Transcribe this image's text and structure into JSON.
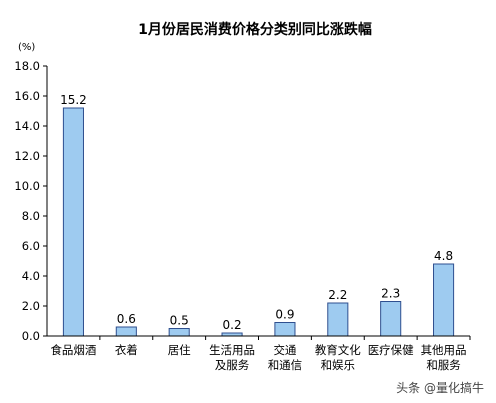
{
  "chart_data": {
    "type": "bar",
    "title": "1月份居民消费价格分类别同比涨跌幅",
    "unit_label": "(%)",
    "ylim": [
      0,
      18
    ],
    "ytick_labels": [
      "0.0",
      "2.0",
      "4.0",
      "6.0",
      "8.0",
      "10.0",
      "12.0",
      "14.0",
      "16.0",
      "18.0"
    ],
    "categories": [
      [
        "食品烟酒"
      ],
      [
        "衣着"
      ],
      [
        "居住"
      ],
      [
        "生活用品",
        "及服务"
      ],
      [
        "交通",
        "和通信"
      ],
      [
        "教育文化",
        "和娱乐"
      ],
      [
        "医疗保健"
      ],
      [
        "其他用品",
        "和服务"
      ]
    ],
    "values": [
      15.2,
      0.6,
      0.5,
      0.2,
      0.9,
      2.2,
      2.3,
      4.8
    ],
    "value_labels": [
      "15.2",
      "0.6",
      "0.5",
      "0.2",
      "0.9",
      "2.2",
      "2.3",
      "4.8"
    ],
    "grid": false,
    "bar_fill": "#9ecbf0",
    "bar_stroke": "#2f4f8f"
  },
  "watermark": "头条 @量化搞牛"
}
